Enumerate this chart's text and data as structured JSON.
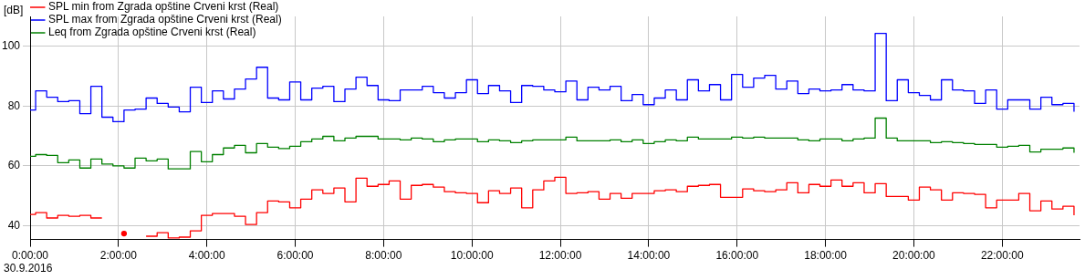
{
  "chart_data": {
    "type": "step",
    "ylabel": "[dB]",
    "annotations": [
      "30.9.2016"
    ],
    "x": [
      0,
      0.125,
      0.375,
      0.625,
      0.875,
      1.125,
      1.375,
      1.625,
      1.875,
      2.125,
      2.375,
      2.625,
      2.875,
      3.125,
      3.375,
      3.625,
      3.875,
      4.125,
      4.375,
      4.625,
      4.875,
      5.125,
      5.375,
      5.625,
      5.875,
      6.125,
      6.375,
      6.625,
      6.875,
      7.125,
      7.375,
      7.625,
      7.875,
      8.125,
      8.375,
      8.625,
      8.875,
      9.125,
      9.375,
      9.625,
      9.875,
      10.125,
      10.375,
      10.625,
      10.875,
      11.125,
      11.375,
      11.625,
      11.875,
      12.125,
      12.375,
      12.625,
      12.875,
      13.125,
      13.375,
      13.625,
      13.875,
      14.125,
      14.375,
      14.625,
      14.875,
      15.125,
      15.375,
      15.625,
      15.875,
      16.125,
      16.375,
      16.625,
      16.875,
      17.125,
      17.375,
      17.625,
      17.875,
      18.125,
      18.375,
      18.625,
      18.875,
      19.125,
      19.375,
      19.625,
      19.875,
      20.125,
      20.375,
      20.625,
      20.875,
      21.125,
      21.375,
      21.625,
      21.875,
      22.125,
      22.375,
      22.625,
      22.875,
      23.125,
      23.375,
      23.625
    ],
    "series": [
      {
        "name": "SPL min from Zgrada opštine Crveni krst (Real)",
        "color": "#ff0000",
        "values": [
          43.8,
          44.4,
          42.6,
          43.5,
          43.2,
          43.5,
          42.6,
          42.6,
          null,
          37.4,
          null,
          36.5,
          37.7,
          35.9,
          36.2,
          38.3,
          43.5,
          44.1,
          44.1,
          43.2,
          40.4,
          44.4,
          48.3,
          48.0,
          46.0,
          48.9,
          52.0,
          50.8,
          52.6,
          48.0,
          55.9,
          53.2,
          53.8,
          55.0,
          48.9,
          53.5,
          53.8,
          52.9,
          51.4,
          51.0,
          50.8,
          47.7,
          51.7,
          50.8,
          52.6,
          46.0,
          52.0,
          55.0,
          56.2,
          50.8,
          51.0,
          51.4,
          48.9,
          50.8,
          49.2,
          50.8,
          50.8,
          51.7,
          52.0,
          51.4,
          53.2,
          53.5,
          53.8,
          49.5,
          49.5,
          52.3,
          51.7,
          51.4,
          52.0,
          54.4,
          51.0,
          53.8,
          53.2,
          55.3,
          53.2,
          54.4,
          51.0,
          54.1,
          49.8,
          49.8,
          48.6,
          52.9,
          52.0,
          48.6,
          51.0,
          50.8,
          50.5,
          46.0,
          48.6,
          48.6,
          50.8,
          45.0,
          48.3,
          45.6,
          46.5,
          43.5
        ]
      },
      {
        "name": "SPL max from Zgrada opštine Crveni krst (Real)",
        "color": "#0000ff",
        "values": [
          78.7,
          85.1,
          83.0,
          81.5,
          81.8,
          77.5,
          86.6,
          76.3,
          74.8,
          78.7,
          79.0,
          82.7,
          80.9,
          79.7,
          78.1,
          86.3,
          81.2,
          85.1,
          82.4,
          85.7,
          89.1,
          93.0,
          82.7,
          82.1,
          88.1,
          82.1,
          86.0,
          86.6,
          81.5,
          85.7,
          89.7,
          86.9,
          82.1,
          81.8,
          85.4,
          85.4,
          86.6,
          84.5,
          82.7,
          84.5,
          88.8,
          84.2,
          86.9,
          85.1,
          81.2,
          86.9,
          86.6,
          85.4,
          84.8,
          88.4,
          82.1,
          86.3,
          85.4,
          86.6,
          81.8,
          83.9,
          80.5,
          82.7,
          85.4,
          82.1,
          88.8,
          85.1,
          87.2,
          82.1,
          90.6,
          86.3,
          89.4,
          90.3,
          85.7,
          88.4,
          84.2,
          85.7,
          85.1,
          85.4,
          87.2,
          85.4,
          85.1,
          104.3,
          81.8,
          88.8,
          84.5,
          83.6,
          82.1,
          88.8,
          85.4,
          85.1,
          80.9,
          85.4,
          79.0,
          82.1,
          82.1,
          79.0,
          83.0,
          80.5,
          80.9,
          78.1
        ]
      },
      {
        "name": "Leq from Zgrada opštine Crveni krst (Real)",
        "color": "#008000",
        "values": [
          63.2,
          63.8,
          63.5,
          61.1,
          62.0,
          59.3,
          62.3,
          60.6,
          60.0,
          59.3,
          62.6,
          61.7,
          62.3,
          59.0,
          59.0,
          64.8,
          61.4,
          63.8,
          66.0,
          66.9,
          64.4,
          67.5,
          66.3,
          65.8,
          66.6,
          68.1,
          69.0,
          69.9,
          68.4,
          69.3,
          69.9,
          69.9,
          69.0,
          69.0,
          68.7,
          69.3,
          69.0,
          68.1,
          68.7,
          69.0,
          69.0,
          68.1,
          68.7,
          68.4,
          67.8,
          68.4,
          68.7,
          68.7,
          68.7,
          69.6,
          68.4,
          68.4,
          68.4,
          68.7,
          68.1,
          68.7,
          67.5,
          68.1,
          68.7,
          68.4,
          69.6,
          69.0,
          69.0,
          69.0,
          69.6,
          69.3,
          69.6,
          69.3,
          69.3,
          69.3,
          68.7,
          68.4,
          69.0,
          69.0,
          68.4,
          69.0,
          69.3,
          76.0,
          69.3,
          68.4,
          68.4,
          68.4,
          67.8,
          68.1,
          67.8,
          67.5,
          67.2,
          67.2,
          66.3,
          66.6,
          66.9,
          64.7,
          65.6,
          65.6,
          66.0,
          64.4
        ]
      }
    ],
    "xlim": [
      0,
      23.75
    ],
    "ylim": [
      35.4,
      110
    ],
    "xticks": [
      {
        "value": 0,
        "label": "0:00:00"
      },
      {
        "value": 2,
        "label": "2:00:00"
      },
      {
        "value": 4,
        "label": "4:00:00"
      },
      {
        "value": 6,
        "label": "6:00:00"
      },
      {
        "value": 8,
        "label": "8:00:00"
      },
      {
        "value": 10,
        "label": "10:00:00"
      },
      {
        "value": 12,
        "label": "12:00:00"
      },
      {
        "value": 14,
        "label": "14:00:00"
      },
      {
        "value": 16,
        "label": "16:00:00"
      },
      {
        "value": 18,
        "label": "18:00:00"
      },
      {
        "value": 20,
        "label": "20:00:00"
      },
      {
        "value": 22,
        "label": "22:00:00"
      }
    ],
    "yticks": [
      40,
      60,
      80,
      100
    ],
    "grid": true,
    "legend": "top left",
    "marker": "none",
    "line_style": "solid"
  }
}
